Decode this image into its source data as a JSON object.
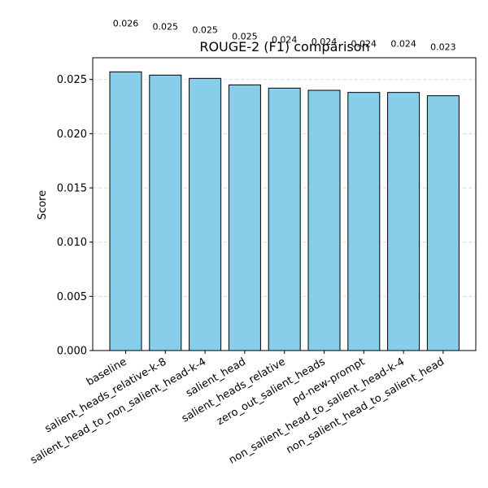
{
  "chart_data": {
    "type": "bar",
    "title": "ROUGE-2 (F1) comparison",
    "xlabel": "",
    "ylabel": "Score",
    "categories": [
      "baseline",
      "salient_heads_relative-k-8",
      "salient_head_to_non_salient_head-k-4",
      "salient_head",
      "salient_heads_relative",
      "zero_out_salient_heads",
      "pd-new-prompt",
      "non_salient_head_to_salient_head-k-4",
      "non_salient_head_to_salient_head"
    ],
    "values": [
      0.0257,
      0.0254,
      0.0251,
      0.0245,
      0.0242,
      0.024,
      0.0238,
      0.0238,
      0.0235
    ],
    "data_labels": [
      "0.026",
      "0.025",
      "0.025",
      "0.025",
      "0.024",
      "0.024",
      "0.024",
      "0.024",
      "0.023"
    ],
    "ylim": [
      0,
      0.027
    ],
    "yticks": [
      0.0,
      0.005,
      0.01,
      0.015,
      0.02,
      0.025
    ],
    "ytick_labels": [
      "0.000",
      "0.005",
      "0.010",
      "0.015",
      "0.020",
      "0.025"
    ],
    "grid": "y-dashed",
    "bar_color": "#87CEEB",
    "bar_edge_color": "#000000"
  }
}
